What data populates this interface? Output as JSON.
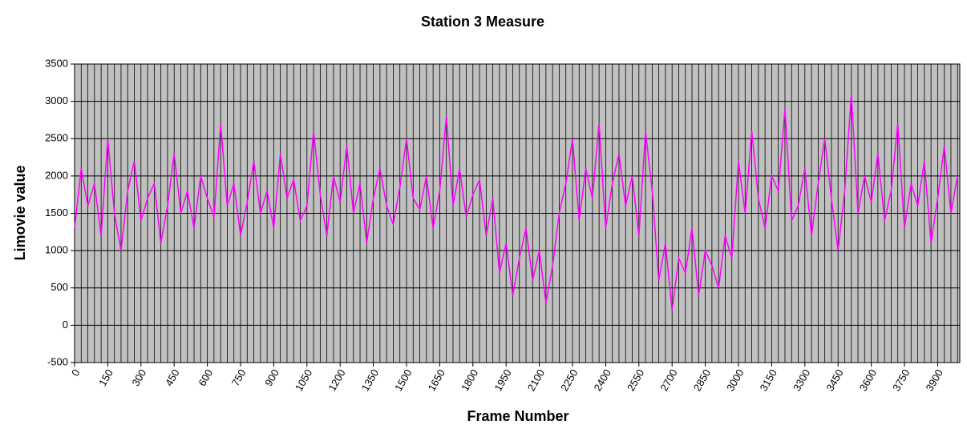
{
  "chart_data": {
    "type": "line",
    "title": "Station 3 Measure",
    "x_label": "Frame Number",
    "y_label": "Limovie value",
    "x": [
      0,
      30,
      60,
      90,
      120,
      150,
      180,
      210,
      240,
      270,
      300,
      330,
      360,
      390,
      420,
      450,
      480,
      510,
      540,
      570,
      600,
      630,
      660,
      690,
      720,
      750,
      780,
      810,
      840,
      870,
      900,
      930,
      960,
      990,
      1020,
      1050,
      1080,
      1110,
      1140,
      1170,
      1200,
      1230,
      1260,
      1290,
      1320,
      1350,
      1380,
      1410,
      1440,
      1470,
      1500,
      1530,
      1560,
      1590,
      1620,
      1650,
      1680,
      1710,
      1740,
      1770,
      1800,
      1830,
      1860,
      1890,
      1920,
      1950,
      1980,
      2010,
      2040,
      2070,
      2100,
      2130,
      2160,
      2190,
      2220,
      2250,
      2280,
      2310,
      2340,
      2370,
      2400,
      2430,
      2460,
      2490,
      2520,
      2550,
      2580,
      2610,
      2640,
      2670,
      2700,
      2730,
      2760,
      2790,
      2820,
      2850,
      2880,
      2910,
      2940,
      2970,
      3000,
      3030,
      3060,
      3090,
      3120,
      3150,
      3180,
      3210,
      3240,
      3270,
      3300,
      3330,
      3360,
      3390,
      3420,
      3450,
      3480,
      3510,
      3540,
      3570,
      3600,
      3630,
      3660,
      3690,
      3720,
      3750,
      3780,
      3810,
      3840,
      3870,
      3900,
      3930,
      3960,
      3990
    ],
    "series": [
      {
        "name": "Limovie value",
        "color": "#ff00ff",
        "values": [
          1300,
          2100,
          1600,
          1900,
          1200,
          2500,
          1500,
          1000,
          1800,
          2200,
          1400,
          1700,
          1900,
          1100,
          1600,
          2300,
          1500,
          1800,
          1300,
          2000,
          1700,
          1450,
          2700,
          1600,
          1900,
          1200,
          1650,
          2200,
          1500,
          1800,
          1300,
          2300,
          1700,
          1950,
          1400,
          1600,
          2600,
          1750,
          1200,
          2000,
          1650,
          2400,
          1500,
          1900,
          1100,
          1700,
          2100,
          1600,
          1350,
          1850,
          2500,
          1700,
          1550,
          2000,
          1300,
          1800,
          2800,
          1600,
          2100,
          1450,
          1750,
          1950,
          1200,
          1700,
          700,
          1100,
          400,
          900,
          1300,
          600,
          1000,
          300,
          800,
          1500,
          1900,
          2500,
          1400,
          2100,
          1700,
          2700,
          1300,
          1900,
          2300,
          1600,
          2000,
          1200,
          2600,
          1800,
          600,
          1100,
          200,
          900,
          700,
          1300,
          400,
          1000,
          800,
          500,
          1200,
          900,
          2200,
          1500,
          2600,
          1700,
          1300,
          2000,
          1800,
          2900,
          1400,
          1600,
          2100,
          1200,
          1900,
          2500,
          1700,
          1000,
          1800,
          3100,
          1500,
          2000,
          1650,
          2300,
          1400,
          1800,
          2700,
          1300,
          1900,
          1600,
          2200,
          1100,
          1700,
          2400,
          1500,
          2000
        ]
      }
    ],
    "xlim": [
      0,
      4000
    ],
    "xticks": [
      0,
      150,
      300,
      450,
      600,
      750,
      900,
      1050,
      1200,
      1350,
      1500,
      1650,
      1800,
      1950,
      2100,
      2250,
      2400,
      2550,
      2700,
      2850,
      3000,
      3150,
      3300,
      3450,
      3600,
      3750,
      3900
    ],
    "ylim": [
      -500,
      3500
    ],
    "yticks": [
      -500,
      0,
      500,
      1000,
      1500,
      2000,
      2500,
      3000,
      3500
    ],
    "grid": true
  }
}
